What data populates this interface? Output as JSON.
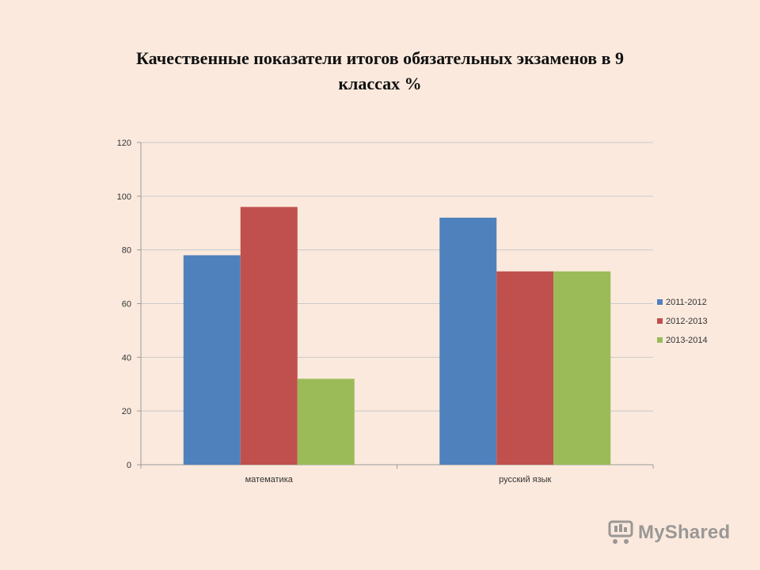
{
  "title_line1": "Качественные показатели итогов обязательных экзаменов в 9",
  "title_line2": "классах %",
  "watermark": "MyShared",
  "colors": {
    "background": "#fbe9dd",
    "grid": "#c9c9c9",
    "axis": "#9a9a9a",
    "text": "#333333"
  },
  "chart_data": {
    "type": "bar",
    "categories": [
      "математика",
      "русский язык"
    ],
    "series": [
      {
        "name": "2011-2012",
        "values": [
          78,
          92
        ],
        "color": "#4f81bd"
      },
      {
        "name": "2012-2013",
        "values": [
          96,
          72
        ],
        "color": "#c0504d"
      },
      {
        "name": "2013-2014",
        "values": [
          32,
          72
        ],
        "color": "#9bbb59"
      }
    ],
    "ylim": [
      0,
      120
    ],
    "yticks": [
      0,
      20,
      40,
      60,
      80,
      100,
      120
    ],
    "grid": true,
    "legend": "right"
  }
}
